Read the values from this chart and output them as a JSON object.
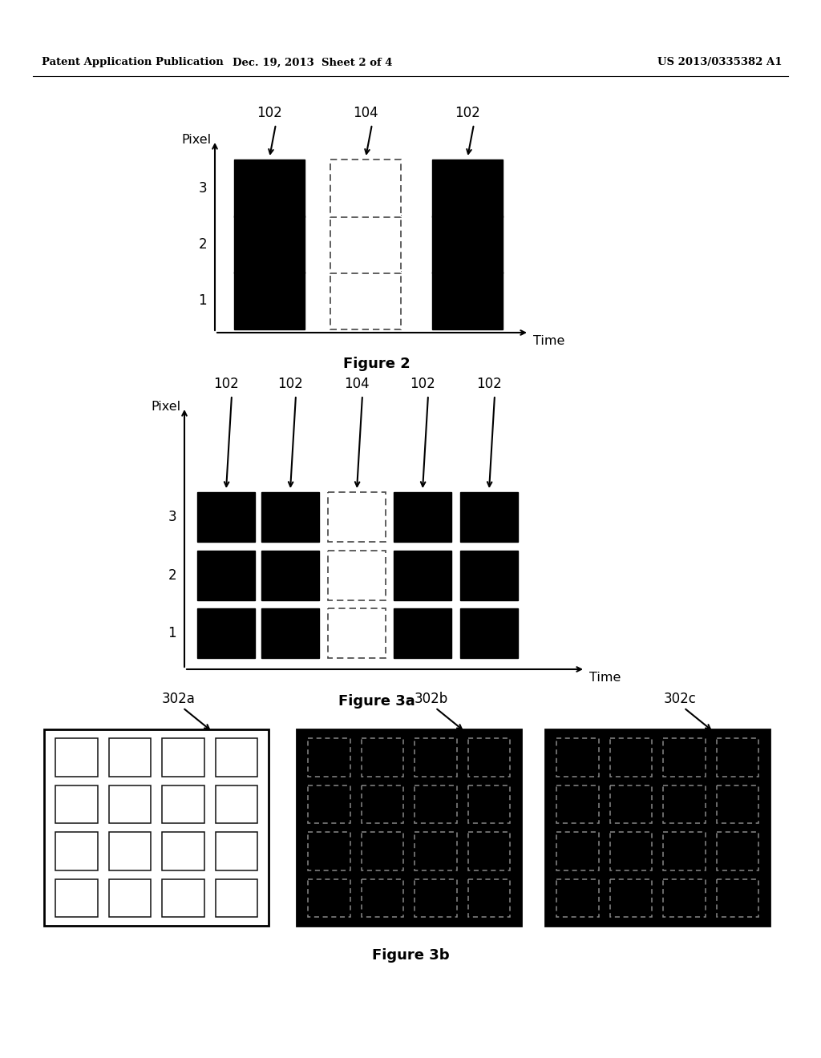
{
  "header_left": "Patent Application Publication",
  "header_mid": "Dec. 19, 2013  Sheet 2 of 4",
  "header_right": "US 2013/0335382 A1",
  "fig2_title": "Figure 2",
  "fig3a_title": "Figure 3a",
  "fig3b_title": "Figure 3b",
  "bg_color": "#ffffff",
  "black_color": "#000000",
  "white_color": "#ffffff"
}
